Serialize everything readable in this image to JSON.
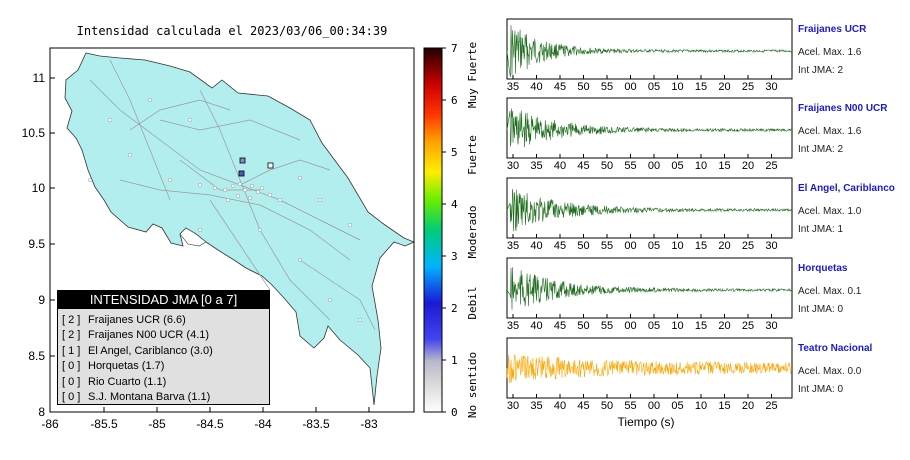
{
  "map": {
    "title": "Intensidad calculada el 2023/03/06_00:34:39",
    "lon_ticks": [
      "-86",
      "-85.5",
      "-85",
      "-84.5",
      "-84",
      "-83.5",
      "-83"
    ],
    "lat_ticks": [
      "8",
      "8.5",
      "9",
      "9.5",
      "10",
      "10.5",
      "11"
    ],
    "legend_title": "INTENSIDAD JMA [0 a 7]",
    "legend_items": [
      {
        "level": "[ 2 ]",
        "name": "Fraijanes UCR (6.6)"
      },
      {
        "level": "[ 2 ]",
        "name": "Fraijanes N00 UCR (4.1)"
      },
      {
        "level": "[ 1 ]",
        "name": "El Angel, Cariblanco (3.0)"
      },
      {
        "level": "[ 0 ]",
        "name": "Horquetas (1.7)"
      },
      {
        "level": "[ 0 ]",
        "name": "Rio Cuarto (1.1)"
      },
      {
        "level": "[ 0 ]",
        "name": "S.J. Montana Barva (1.1)"
      }
    ],
    "colorbar": {
      "ticks": [
        "0",
        "1",
        "2",
        "3",
        "4",
        "5",
        "6",
        "7"
      ],
      "labels": [
        "No sentido",
        "Debil",
        "Moderado",
        "Fuerte",
        "Muy Fuerte"
      ]
    },
    "colors": {
      "land": "#b2eeee",
      "sea": "#ffffff",
      "station": "#5555cc"
    }
  },
  "waveforms": {
    "xlabel": "Tiempo (s)",
    "panels": [
      {
        "name": "Fraijanes UCR",
        "acel": "Acel. Max. 1.6",
        "jma": "Int JMA: 2",
        "color": "#1a6b1a",
        "ticks": [
          "35",
          "40",
          "45",
          "50",
          "55",
          "00",
          "05",
          "10",
          "15",
          "20",
          "25",
          "30"
        ]
      },
      {
        "name": "Fraijanes N00 UCR",
        "acel": "Acel. Max. 1.6",
        "jma": "Int JMA: 2",
        "color": "#1a6b1a",
        "ticks": [
          "30",
          "35",
          "40",
          "45",
          "50",
          "55",
          "00",
          "05",
          "10",
          "15",
          "20",
          "25"
        ]
      },
      {
        "name": "El Angel, Cariblanco",
        "acel": "Acel. Max. 1.0",
        "jma": "Int JMA: 1",
        "color": "#1a6b1a",
        "ticks": [
          "35",
          "40",
          "45",
          "50",
          "55",
          "00",
          "05",
          "10",
          "15",
          "20",
          "25",
          "30"
        ]
      },
      {
        "name": "Horquetas",
        "acel": "Acel. Max. 0.1",
        "jma": "Int JMA: 0",
        "color": "#1a6b1a",
        "ticks": [
          "35",
          "40",
          "45",
          "50",
          "55",
          "00",
          "05",
          "10",
          "15",
          "20",
          "25",
          "30"
        ]
      },
      {
        "name": "Teatro Nacional",
        "acel": "Acel. Max. 0.0",
        "jma": "Int JMA: 0",
        "color": "#ffa500",
        "ticks": [
          "30",
          "35",
          "40",
          "45",
          "50",
          "55",
          "00",
          "05",
          "10",
          "15",
          "20",
          "25"
        ]
      }
    ]
  },
  "chart_data": [
    {
      "type": "scatter",
      "title": "Intensidad calculada el 2023/03/06_00:34:39",
      "xlim": [
        -86,
        -82.55
      ],
      "ylim": [
        8,
        11.3
      ],
      "stations_highlighted": [
        {
          "lon": -84.18,
          "lat": 10.26
        },
        {
          "lon": -84.17,
          "lat": 10.13
        },
        {
          "lon": -84.08,
          "lat": 10.22
        }
      ],
      "colorbar": {
        "range": [
          0,
          7
        ],
        "labels": [
          "No sentido",
          "Debil",
          "Moderado",
          "Fuerte",
          "Muy Fuerte"
        ]
      }
    },
    {
      "type": "line",
      "xlabel": "Tiempo (s)",
      "series": [
        {
          "name": "Fraijanes UCR",
          "acel_max": 1.6,
          "int_jma": 2
        },
        {
          "name": "Fraijanes N00 UCR",
          "acel_max": 1.6,
          "int_jma": 2
        },
        {
          "name": "El Angel, Cariblanco",
          "acel_max": 1.0,
          "int_jma": 1
        },
        {
          "name": "Horquetas",
          "acel_max": 0.1,
          "int_jma": 0
        },
        {
          "name": "Teatro Nacional",
          "acel_max": 0.0,
          "int_jma": 0
        }
      ]
    }
  ]
}
